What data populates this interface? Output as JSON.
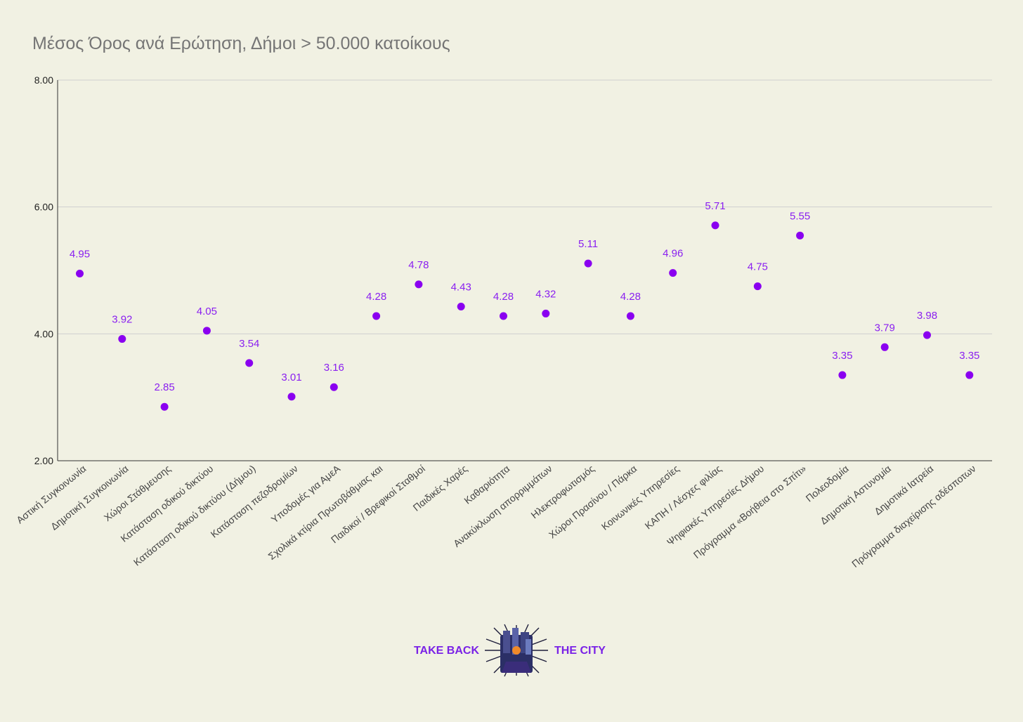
{
  "chart_data": {
    "type": "scatter",
    "title": "Μέσος Όρος ανά Ερώτηση, Δήμοι > 50.000 κατοίκους",
    "xlabel": "",
    "ylabel": "",
    "ylim": [
      2,
      8
    ],
    "yticks": [
      2,
      4,
      6,
      8
    ],
    "ytick_labels": [
      "2.00",
      "4.00",
      "6.00",
      "8.00"
    ],
    "grid": true,
    "categories": [
      "Αστική Συγκοινωνία",
      "Δημοτική Συγκοινωνία",
      "Χώροι Στάθμευσης",
      "Κατάσταση οδικού δικτύου",
      "Κατάσταση οδικού δικτύου (Δήμου)",
      "Κατάσταση πεζοδρομίων",
      "Υποδομές για ΑμεΑ",
      "Σχολικά κτίρια Πρωτοβάθμιας και",
      "Παιδικοί / Βρεφικοί Σταθμοί",
      "Παιδικές Χαρές",
      "Καθαριότητα",
      "Ανακύκλωση απορριμμάτων",
      "Ηλεκτροφωτισμός",
      "Χώροι Πρασίνου / Πάρκα",
      "Κοινωνικές Υπηρεσίες",
      "ΚΑΠΗ / Λέσχες φιλίας",
      "Ψηφιακές Υπηρεσίες Δήμου",
      "Πρόγραμμα «Βοήθεια στο Σπίτι»",
      "Πολεοδομία",
      "Δημοτική Αστυνομία",
      "Δημοτικά Ιατρεία",
      "Πρόγραμμα διαχείρισης αδέσποτων"
    ],
    "values": [
      4.95,
      3.92,
      2.85,
      4.05,
      3.54,
      3.01,
      3.16,
      4.28,
      4.78,
      4.43,
      4.28,
      4.32,
      5.11,
      4.28,
      4.96,
      5.71,
      4.75,
      5.55,
      3.35,
      3.79,
      3.98,
      3.35
    ],
    "value_labels": [
      "4.95",
      "3.92",
      "2.85",
      "4.05",
      "3.54",
      "3.01",
      "3.16",
      "4.28",
      "4.78",
      "4.43",
      "4.28",
      "4.32",
      "5.11",
      "4.28",
      "4.96",
      "5.71",
      "4.75",
      "5.55",
      "3.35",
      "3.79",
      "3.98",
      "3.35"
    ],
    "marker_color": "#8a00f0",
    "label_color": "#8a1ff0"
  },
  "logo": {
    "left_text": "TAKE BACK",
    "right_text": "THE CITY",
    "text_color": "#7a22e6"
  },
  "colors": {
    "background": "#f1f1e3",
    "grid": "#cfcfcf",
    "axis": "#333333",
    "title": "#757575"
  }
}
